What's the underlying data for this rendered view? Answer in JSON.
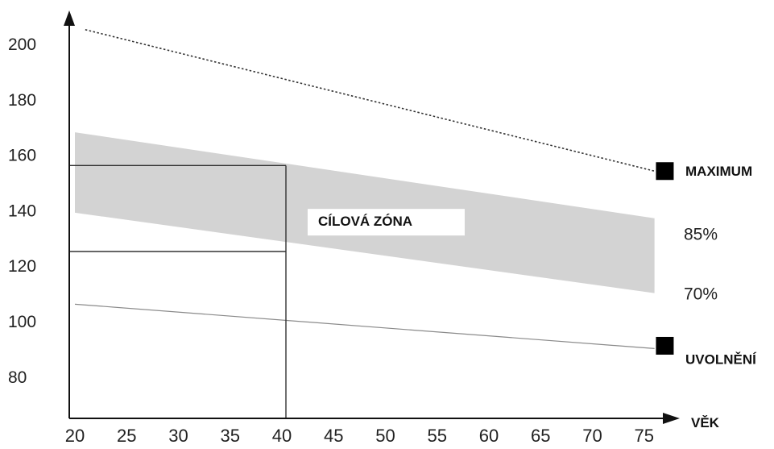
{
  "chart_data": {
    "type": "line",
    "xlabel": "VĚK",
    "ylabel": "",
    "xlim": [
      20,
      77
    ],
    "ylim": [
      62,
      210
    ],
    "x_ticks": [
      "20",
      "25",
      "30",
      "35",
      "40",
      "45",
      "50",
      "55",
      "60",
      "65",
      "70",
      "75"
    ],
    "y_ticks": [
      "200",
      "180",
      "160",
      "140",
      "120",
      "100",
      "80"
    ],
    "series": [
      {
        "name": "MAXIMUM",
        "style": "dotted",
        "x": [
          21,
          76
        ],
        "y": [
          205,
          154
        ]
      },
      {
        "name": "85%",
        "style": "band-upper",
        "x": [
          20,
          76
        ],
        "y": [
          168,
          137
        ]
      },
      {
        "name": "70%",
        "style": "band-lower",
        "x": [
          20,
          76
        ],
        "y": [
          139,
          110
        ]
      },
      {
        "name": "UVOLNĚNÍ",
        "style": "thin",
        "x": [
          20,
          76
        ],
        "y": [
          106,
          90
        ]
      }
    ],
    "annotations": [
      {
        "text": "CÍLOVÁ ZÓNA",
        "x": 43.5,
        "y": 136
      }
    ],
    "guides": {
      "age": 40,
      "upper_value": 156,
      "lower_value": 125
    },
    "markers": [
      {
        "series": "MAXIMUM",
        "x": 77,
        "y": 154
      },
      {
        "series": "UVOLNĚNÍ",
        "x": 77,
        "y": 91
      }
    ],
    "grid": false,
    "colors": {
      "band": "#d3d3d3",
      "axis": "#111111",
      "max_line": "#333333",
      "rest_line": "#8a8a8a",
      "guides": "#333333",
      "marker": "#000000"
    }
  }
}
